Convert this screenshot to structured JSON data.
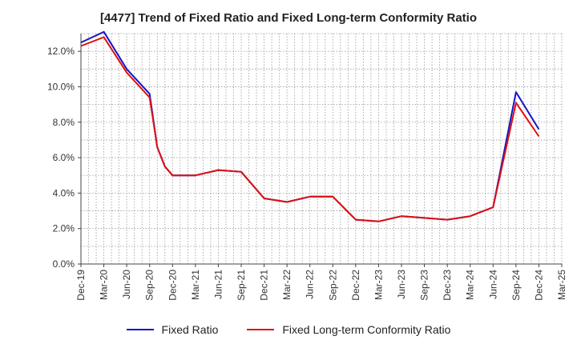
{
  "chart_data": {
    "type": "line",
    "title": "[4477]  Trend of Fixed Ratio and Fixed Long-term Conformity Ratio",
    "xlabel": "",
    "ylabel": "",
    "ylim": [
      0,
      13.0
    ],
    "yticks": [
      0,
      2,
      4,
      6,
      8,
      10,
      12
    ],
    "ytick_labels": [
      "0.0%",
      "2.0%",
      "4.0%",
      "6.0%",
      "8.0%",
      "10.0%",
      "12.0%"
    ],
    "xtick_labels": [
      "Dec-19",
      "Mar-20",
      "Jun-20",
      "Sep-20",
      "Dec-20",
      "Mar-21",
      "Jun-21",
      "Sep-21",
      "Dec-21",
      "Mar-22",
      "Jun-22",
      "Sep-22",
      "Dec-22",
      "Mar-23",
      "Jun-23",
      "Sep-23",
      "Dec-23",
      "Mar-24",
      "Jun-24",
      "Sep-24",
      "Dec-24",
      "Mar-25"
    ],
    "grid": true,
    "legend_position": "bottom",
    "series": [
      {
        "name": "Fixed Ratio",
        "color": "#1515c8",
        "x": [
          "Dec-19",
          "Mar-20",
          "Jun-20",
          "Sep-20",
          "Oct-20",
          "Nov-20",
          "Dec-20",
          "Mar-21",
          "Jun-21",
          "Sep-21",
          "Dec-21",
          "Mar-22",
          "Jun-22",
          "Sep-22",
          "Dec-22",
          "Mar-23",
          "Jun-23",
          "Sep-23",
          "Dec-23",
          "Mar-24",
          "Jun-24",
          "Sep-24",
          "Dec-24"
        ],
        "values": [
          12.5,
          13.1,
          11.0,
          9.6,
          6.6,
          5.5,
          5.0,
          5.0,
          5.3,
          5.2,
          3.7,
          3.5,
          3.8,
          3.8,
          2.5,
          2.4,
          2.7,
          2.6,
          2.5,
          2.7,
          3.2,
          9.7,
          7.6
        ]
      },
      {
        "name": "Fixed Long-term Conformity Ratio",
        "color": "#e01010",
        "x": [
          "Dec-19",
          "Mar-20",
          "Jun-20",
          "Sep-20",
          "Oct-20",
          "Nov-20",
          "Dec-20",
          "Mar-21",
          "Jun-21",
          "Sep-21",
          "Dec-21",
          "Mar-22",
          "Jun-22",
          "Sep-22",
          "Dec-22",
          "Mar-23",
          "Jun-23",
          "Sep-23",
          "Dec-23",
          "Mar-24",
          "Jun-24",
          "Sep-24",
          "Dec-24"
        ],
        "values": [
          12.3,
          12.8,
          10.8,
          9.4,
          6.6,
          5.5,
          5.0,
          5.0,
          5.3,
          5.2,
          3.7,
          3.5,
          3.8,
          3.8,
          2.5,
          2.4,
          2.7,
          2.6,
          2.5,
          2.7,
          3.2,
          9.1,
          7.2
        ]
      }
    ]
  }
}
